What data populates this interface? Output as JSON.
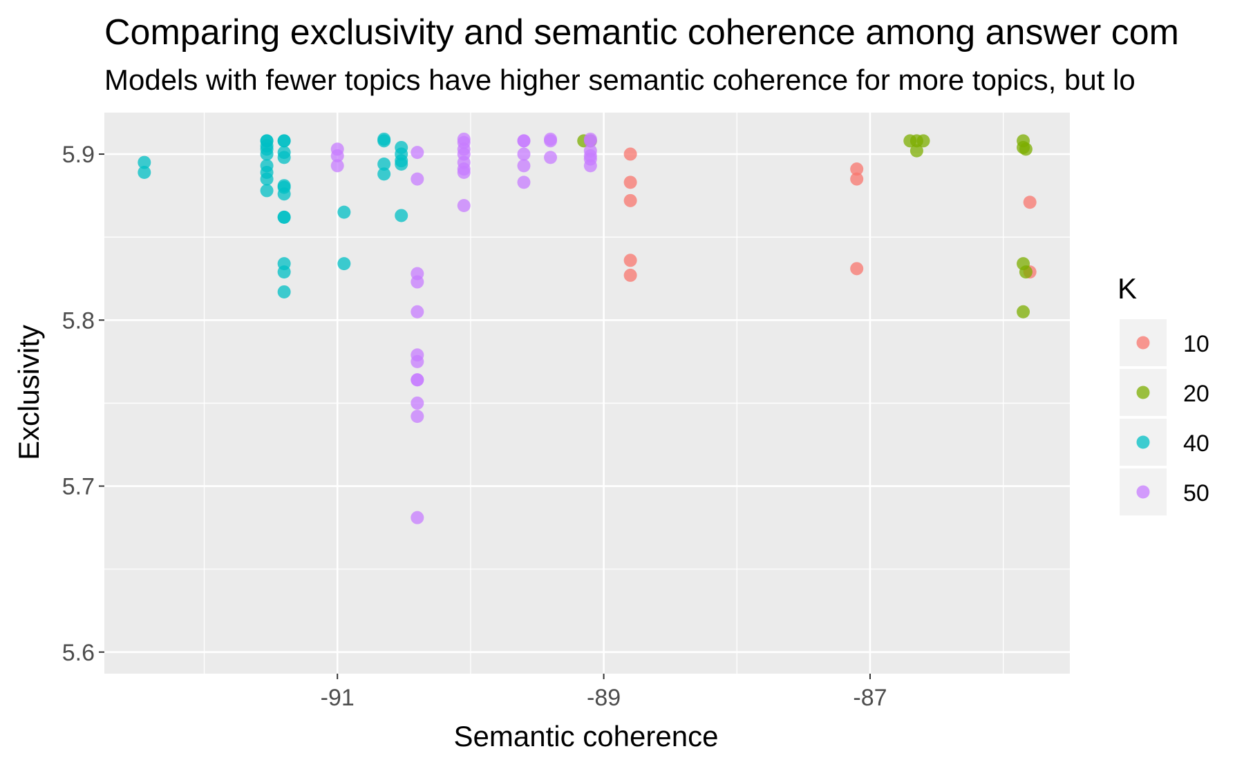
{
  "chart_data": {
    "type": "scatter",
    "title": "Comparing exclusivity and semantic coherence among answer com",
    "subtitle": "Models with fewer topics have higher semantic coherence for more topics, but lo",
    "xlabel": "Semantic coherence",
    "ylabel": "Exclusivity",
    "xlim": [
      -92.75,
      -85.5
    ],
    "ylim": [
      5.587,
      5.925
    ],
    "x_ticks": [
      -91,
      -89,
      -87
    ],
    "y_ticks": [
      5.6,
      5.7,
      5.8,
      5.9
    ],
    "grid": true,
    "legend": {
      "title": "K",
      "position": "right"
    },
    "series": [
      {
        "name": "10",
        "color": "#F8766D",
        "x": [
          -88.8,
          -88.8,
          -88.8,
          -88.8,
          -88.8,
          -87.1,
          -87.1,
          -87.1,
          -85.8,
          -85.8
        ],
        "y": [
          5.9,
          5.883,
          5.872,
          5.836,
          5.827,
          5.891,
          5.885,
          5.831,
          5.871,
          5.829
        ]
      },
      {
        "name": "20",
        "color": "#7CAE00",
        "x": [
          -89.15,
          -89.1,
          -86.7,
          -86.65,
          -86.6,
          -86.65,
          -85.85,
          -85.85,
          -85.83,
          -85.85,
          -85.83,
          -85.85
        ],
        "y": [
          5.908,
          5.908,
          5.908,
          5.908,
          5.908,
          5.902,
          5.908,
          5.904,
          5.903,
          5.834,
          5.829,
          5.805
        ]
      },
      {
        "name": "40",
        "color": "#00BFC4",
        "x": [
          -92.45,
          -92.45,
          -91.53,
          -91.53,
          -91.53,
          -91.53,
          -91.53,
          -91.53,
          -91.53,
          -91.53,
          -91.53,
          -91.4,
          -91.4,
          -91.4,
          -91.4,
          -91.4,
          -91.4,
          -91.4,
          -91.4,
          -91.4,
          -91.4,
          -91.4,
          -91.4,
          -90.95,
          -90.95,
          -90.65,
          -90.65,
          -90.65,
          -90.65,
          -90.52,
          -90.52,
          -90.52,
          -90.52,
          -90.52
        ],
        "y": [
          5.895,
          5.889,
          5.908,
          5.908,
          5.905,
          5.903,
          5.9,
          5.893,
          5.889,
          5.885,
          5.878,
          5.908,
          5.908,
          5.901,
          5.898,
          5.881,
          5.88,
          5.876,
          5.862,
          5.862,
          5.834,
          5.829,
          5.817,
          5.865,
          5.834,
          5.909,
          5.908,
          5.894,
          5.888,
          5.904,
          5.9,
          5.896,
          5.894,
          5.863
        ]
      },
      {
        "name": "50",
        "color": "#C77CFF",
        "x": [
          -91.0,
          -91.0,
          -91.0,
          -90.4,
          -90.4,
          -90.4,
          -90.4,
          -90.4,
          -90.4,
          -90.4,
          -90.4,
          -90.4,
          -90.4,
          -90.4,
          -90.4,
          -90.05,
          -90.05,
          -90.05,
          -90.05,
          -90.05,
          -90.05,
          -90.05,
          -90.05,
          -89.6,
          -89.6,
          -89.6,
          -89.6,
          -89.6,
          -89.4,
          -89.4,
          -89.4,
          -89.1,
          -89.1,
          -89.1,
          -89.1,
          -89.1,
          -89.1
        ],
        "y": [
          5.903,
          5.899,
          5.893,
          5.901,
          5.885,
          5.828,
          5.823,
          5.805,
          5.779,
          5.775,
          5.764,
          5.764,
          5.75,
          5.742,
          5.681,
          5.909,
          5.907,
          5.903,
          5.9,
          5.895,
          5.891,
          5.889,
          5.869,
          5.908,
          5.908,
          5.9,
          5.893,
          5.883,
          5.909,
          5.908,
          5.898,
          5.909,
          5.908,
          5.902,
          5.899,
          5.897,
          5.893
        ]
      }
    ]
  }
}
